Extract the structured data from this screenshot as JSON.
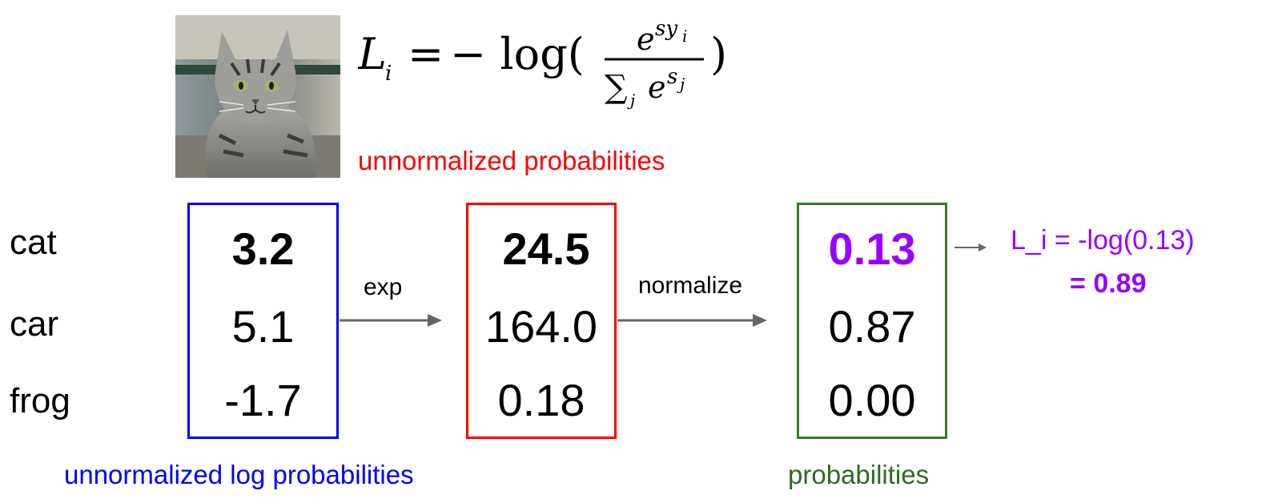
{
  "formula": {
    "lhs": "L",
    "lhs_sub": "i",
    "equals": "=",
    "minus_log": "− log(",
    "numerator_base": "e",
    "numerator_exp": "sy",
    "numerator_exp_sub": "i",
    "denominator_sum": "∑",
    "denominator_sum_sub": "j",
    "denominator_base": "e",
    "denominator_exp": "s",
    "denominator_exp_sub": "j",
    "close_paren": ")"
  },
  "captions": {
    "unnormalized_probabilities": "unnormalized probabilities",
    "unnormalized_log_probabilities": "unnormalized log probabilities",
    "probabilities": "probabilities"
  },
  "classes": [
    "cat",
    "car",
    "frog"
  ],
  "scores": [
    "3.2",
    "5.1",
    "-1.7"
  ],
  "exp_scores": [
    "24.5",
    "164.0",
    "0.18"
  ],
  "probabilities": [
    "0.13",
    "0.87",
    "0.00"
  ],
  "operations": {
    "exp": "exp",
    "normalize": "normalize"
  },
  "loss": {
    "line1": "L_i = -log(0.13)",
    "line2_prefix": "= ",
    "line2_value": "0.89"
  },
  "colors": {
    "scores_box": "#0000ff",
    "exp_box": "#ff0000",
    "prob_box": "#3a7a22",
    "loss": "#9900ff",
    "arrow": "#666666"
  },
  "image": {
    "subject": "cat-photo"
  }
}
